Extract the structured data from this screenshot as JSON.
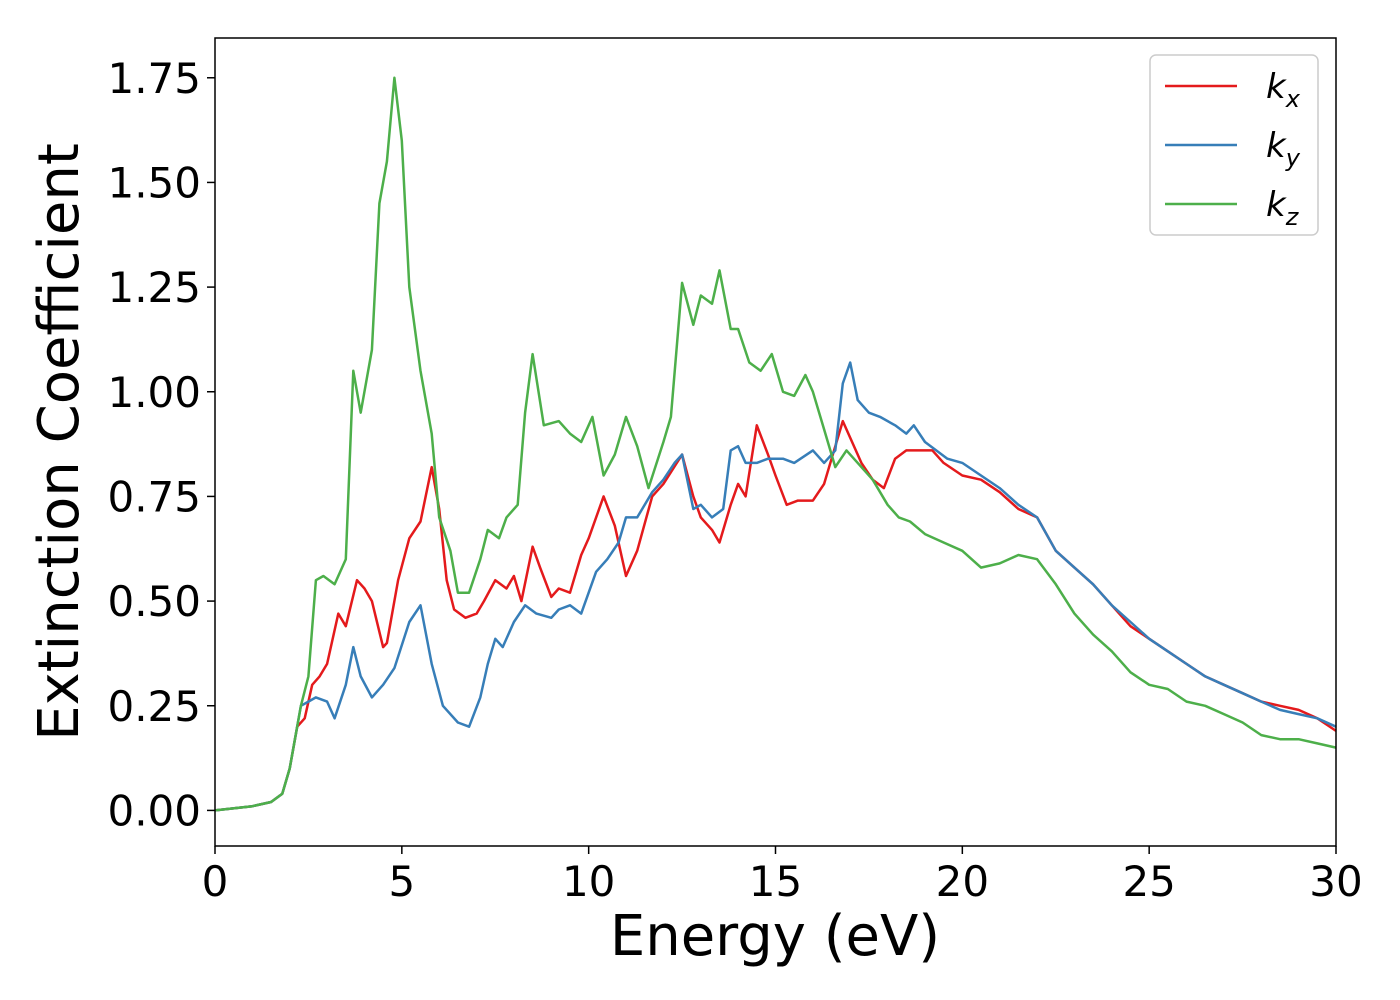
{
  "chart_data": {
    "type": "line",
    "xlabel": "Energy (eV)",
    "ylabel": "Extinction Coefficient",
    "xlim": [
      0,
      30
    ],
    "ylim": [
      -0.085,
      1.845
    ],
    "xticks": [
      0,
      5,
      10,
      15,
      20,
      25,
      30
    ],
    "xtick_labels": [
      "0",
      "5",
      "10",
      "15",
      "20",
      "25",
      "30"
    ],
    "yticks": [
      0,
      0.25,
      0.5,
      0.75,
      1.0,
      1.25,
      1.5,
      1.75
    ],
    "ytick_labels": [
      "0.00",
      "0.25",
      "0.50",
      "0.75",
      "1.00",
      "1.25",
      "1.50",
      "1.75"
    ],
    "grid": false,
    "legend_position": "top-right",
    "series": [
      {
        "name": "k_x",
        "legend_base": "k",
        "legend_sub": "x",
        "color": "#e41a1c",
        "points": [
          [
            0,
            0
          ],
          [
            1,
            0.01
          ],
          [
            1.5,
            0.02
          ],
          [
            1.8,
            0.04
          ],
          [
            2.0,
            0.1
          ],
          [
            2.2,
            0.2
          ],
          [
            2.4,
            0.22
          ],
          [
            2.6,
            0.3
          ],
          [
            2.8,
            0.32
          ],
          [
            3.0,
            0.35
          ],
          [
            3.3,
            0.47
          ],
          [
            3.5,
            0.44
          ],
          [
            3.8,
            0.55
          ],
          [
            4.0,
            0.53
          ],
          [
            4.2,
            0.5
          ],
          [
            4.5,
            0.39
          ],
          [
            4.6,
            0.4
          ],
          [
            4.9,
            0.55
          ],
          [
            5.2,
            0.65
          ],
          [
            5.5,
            0.69
          ],
          [
            5.8,
            0.82
          ],
          [
            6.0,
            0.72
          ],
          [
            6.2,
            0.55
          ],
          [
            6.4,
            0.48
          ],
          [
            6.7,
            0.46
          ],
          [
            7.0,
            0.47
          ],
          [
            7.2,
            0.5
          ],
          [
            7.5,
            0.55
          ],
          [
            7.8,
            0.53
          ],
          [
            8.0,
            0.56
          ],
          [
            8.2,
            0.5
          ],
          [
            8.5,
            0.63
          ],
          [
            8.7,
            0.58
          ],
          [
            9.0,
            0.51
          ],
          [
            9.2,
            0.53
          ],
          [
            9.5,
            0.52
          ],
          [
            9.8,
            0.61
          ],
          [
            10.0,
            0.65
          ],
          [
            10.4,
            0.75
          ],
          [
            10.7,
            0.68
          ],
          [
            11.0,
            0.56
          ],
          [
            11.3,
            0.62
          ],
          [
            11.7,
            0.75
          ],
          [
            12.0,
            0.78
          ],
          [
            12.5,
            0.85
          ],
          [
            12.8,
            0.75
          ],
          [
            13.0,
            0.7
          ],
          [
            13.3,
            0.67
          ],
          [
            13.5,
            0.64
          ],
          [
            13.8,
            0.73
          ],
          [
            14.0,
            0.78
          ],
          [
            14.2,
            0.75
          ],
          [
            14.5,
            0.92
          ],
          [
            14.8,
            0.85
          ],
          [
            15.0,
            0.8
          ],
          [
            15.3,
            0.73
          ],
          [
            15.6,
            0.74
          ],
          [
            16.0,
            0.74
          ],
          [
            16.3,
            0.78
          ],
          [
            16.5,
            0.84
          ],
          [
            16.8,
            0.93
          ],
          [
            17.0,
            0.89
          ],
          [
            17.3,
            0.83
          ],
          [
            17.6,
            0.79
          ],
          [
            17.9,
            0.77
          ],
          [
            18.2,
            0.84
          ],
          [
            18.5,
            0.86
          ],
          [
            18.8,
            0.86
          ],
          [
            19.2,
            0.86
          ],
          [
            19.5,
            0.83
          ],
          [
            20.0,
            0.8
          ],
          [
            20.5,
            0.79
          ],
          [
            21.0,
            0.76
          ],
          [
            21.5,
            0.72
          ],
          [
            22.0,
            0.7
          ],
          [
            22.5,
            0.62
          ],
          [
            23.0,
            0.58
          ],
          [
            23.5,
            0.54
          ],
          [
            24.0,
            0.49
          ],
          [
            24.5,
            0.44
          ],
          [
            25.0,
            0.41
          ],
          [
            25.5,
            0.38
          ],
          [
            26.0,
            0.35
          ],
          [
            26.5,
            0.32
          ],
          [
            27.0,
            0.3
          ],
          [
            27.5,
            0.28
          ],
          [
            28.0,
            0.26
          ],
          [
            28.5,
            0.25
          ],
          [
            29.0,
            0.24
          ],
          [
            29.5,
            0.22
          ],
          [
            30.0,
            0.19
          ]
        ]
      },
      {
        "name": "k_y",
        "legend_base": "k",
        "legend_sub": "y",
        "color": "#377eb8",
        "points": [
          [
            0,
            0
          ],
          [
            1,
            0.01
          ],
          [
            1.5,
            0.02
          ],
          [
            1.8,
            0.04
          ],
          [
            2.0,
            0.1
          ],
          [
            2.3,
            0.25
          ],
          [
            2.5,
            0.26
          ],
          [
            2.7,
            0.27
          ],
          [
            3.0,
            0.26
          ],
          [
            3.2,
            0.22
          ],
          [
            3.5,
            0.3
          ],
          [
            3.7,
            0.39
          ],
          [
            3.9,
            0.32
          ],
          [
            4.2,
            0.27
          ],
          [
            4.5,
            0.3
          ],
          [
            4.8,
            0.34
          ],
          [
            5.2,
            0.45
          ],
          [
            5.5,
            0.49
          ],
          [
            5.8,
            0.35
          ],
          [
            6.1,
            0.25
          ],
          [
            6.5,
            0.21
          ],
          [
            6.8,
            0.2
          ],
          [
            7.1,
            0.27
          ],
          [
            7.3,
            0.35
          ],
          [
            7.5,
            0.41
          ],
          [
            7.7,
            0.39
          ],
          [
            8.0,
            0.45
          ],
          [
            8.3,
            0.49
          ],
          [
            8.6,
            0.47
          ],
          [
            9.0,
            0.46
          ],
          [
            9.2,
            0.48
          ],
          [
            9.5,
            0.49
          ],
          [
            9.8,
            0.47
          ],
          [
            10.2,
            0.57
          ],
          [
            10.5,
            0.6
          ],
          [
            10.8,
            0.64
          ],
          [
            11.0,
            0.7
          ],
          [
            11.3,
            0.7
          ],
          [
            11.7,
            0.76
          ],
          [
            12.0,
            0.79
          ],
          [
            12.3,
            0.83
          ],
          [
            12.5,
            0.85
          ],
          [
            12.8,
            0.72
          ],
          [
            13.0,
            0.73
          ],
          [
            13.3,
            0.7
          ],
          [
            13.6,
            0.72
          ],
          [
            13.8,
            0.86
          ],
          [
            14.0,
            0.87
          ],
          [
            14.2,
            0.83
          ],
          [
            14.5,
            0.83
          ],
          [
            14.8,
            0.84
          ],
          [
            15.2,
            0.84
          ],
          [
            15.5,
            0.83
          ],
          [
            16.0,
            0.86
          ],
          [
            16.3,
            0.83
          ],
          [
            16.6,
            0.86
          ],
          [
            16.8,
            1.02
          ],
          [
            17.0,
            1.07
          ],
          [
            17.2,
            0.98
          ],
          [
            17.5,
            0.95
          ],
          [
            17.8,
            0.94
          ],
          [
            18.2,
            0.92
          ],
          [
            18.5,
            0.9
          ],
          [
            18.7,
            0.92
          ],
          [
            19.0,
            0.88
          ],
          [
            19.3,
            0.86
          ],
          [
            19.6,
            0.84
          ],
          [
            20.0,
            0.83
          ],
          [
            20.5,
            0.8
          ],
          [
            21.0,
            0.77
          ],
          [
            21.5,
            0.73
          ],
          [
            22.0,
            0.7
          ],
          [
            22.5,
            0.62
          ],
          [
            23.0,
            0.58
          ],
          [
            23.5,
            0.54
          ],
          [
            24.0,
            0.49
          ],
          [
            24.5,
            0.45
          ],
          [
            25.0,
            0.41
          ],
          [
            25.5,
            0.38
          ],
          [
            26.0,
            0.35
          ],
          [
            26.5,
            0.32
          ],
          [
            27.0,
            0.3
          ],
          [
            27.5,
            0.28
          ],
          [
            28.0,
            0.26
          ],
          [
            28.5,
            0.24
          ],
          [
            29.0,
            0.23
          ],
          [
            29.5,
            0.22
          ],
          [
            30.0,
            0.2
          ]
        ]
      },
      {
        "name": "k_z",
        "legend_base": "k",
        "legend_sub": "z",
        "color": "#4daf4a",
        "points": [
          [
            0,
            0
          ],
          [
            1,
            0.01
          ],
          [
            1.5,
            0.02
          ],
          [
            1.8,
            0.04
          ],
          [
            2.0,
            0.1
          ],
          [
            2.3,
            0.25
          ],
          [
            2.5,
            0.32
          ],
          [
            2.7,
            0.55
          ],
          [
            2.9,
            0.56
          ],
          [
            3.2,
            0.54
          ],
          [
            3.5,
            0.6
          ],
          [
            3.7,
            1.05
          ],
          [
            3.9,
            0.95
          ],
          [
            4.2,
            1.1
          ],
          [
            4.4,
            1.45
          ],
          [
            4.6,
            1.55
          ],
          [
            4.8,
            1.75
          ],
          [
            5.0,
            1.6
          ],
          [
            5.2,
            1.25
          ],
          [
            5.5,
            1.05
          ],
          [
            5.8,
            0.9
          ],
          [
            6.0,
            0.7
          ],
          [
            6.3,
            0.62
          ],
          [
            6.5,
            0.52
          ],
          [
            6.8,
            0.52
          ],
          [
            7.1,
            0.6
          ],
          [
            7.3,
            0.67
          ],
          [
            7.6,
            0.65
          ],
          [
            7.8,
            0.7
          ],
          [
            8.1,
            0.73
          ],
          [
            8.3,
            0.95
          ],
          [
            8.5,
            1.09
          ],
          [
            8.8,
            0.92
          ],
          [
            9.2,
            0.93
          ],
          [
            9.5,
            0.9
          ],
          [
            9.8,
            0.88
          ],
          [
            10.1,
            0.94
          ],
          [
            10.4,
            0.8
          ],
          [
            10.7,
            0.85
          ],
          [
            11.0,
            0.94
          ],
          [
            11.3,
            0.87
          ],
          [
            11.6,
            0.77
          ],
          [
            12.0,
            0.88
          ],
          [
            12.2,
            0.94
          ],
          [
            12.5,
            1.26
          ],
          [
            12.8,
            1.16
          ],
          [
            13.0,
            1.23
          ],
          [
            13.3,
            1.21
          ],
          [
            13.5,
            1.29
          ],
          [
            13.8,
            1.15
          ],
          [
            14.0,
            1.15
          ],
          [
            14.3,
            1.07
          ],
          [
            14.6,
            1.05
          ],
          [
            14.9,
            1.09
          ],
          [
            15.2,
            1.0
          ],
          [
            15.5,
            0.99
          ],
          [
            15.8,
            1.04
          ],
          [
            16.0,
            1.0
          ],
          [
            16.3,
            0.91
          ],
          [
            16.6,
            0.82
          ],
          [
            16.9,
            0.86
          ],
          [
            17.2,
            0.83
          ],
          [
            17.6,
            0.79
          ],
          [
            18.0,
            0.73
          ],
          [
            18.3,
            0.7
          ],
          [
            18.6,
            0.69
          ],
          [
            19.0,
            0.66
          ],
          [
            19.5,
            0.64
          ],
          [
            20.0,
            0.62
          ],
          [
            20.5,
            0.58
          ],
          [
            21.0,
            0.59
          ],
          [
            21.5,
            0.61
          ],
          [
            22.0,
            0.6
          ],
          [
            22.5,
            0.54
          ],
          [
            23.0,
            0.47
          ],
          [
            23.5,
            0.42
          ],
          [
            24.0,
            0.38
          ],
          [
            24.5,
            0.33
          ],
          [
            25.0,
            0.3
          ],
          [
            25.5,
            0.29
          ],
          [
            26.0,
            0.26
          ],
          [
            26.5,
            0.25
          ],
          [
            27.0,
            0.23
          ],
          [
            27.5,
            0.21
          ],
          [
            28.0,
            0.18
          ],
          [
            28.5,
            0.17
          ],
          [
            29.0,
            0.17
          ],
          [
            29.5,
            0.16
          ],
          [
            30.0,
            0.15
          ]
        ]
      }
    ]
  }
}
